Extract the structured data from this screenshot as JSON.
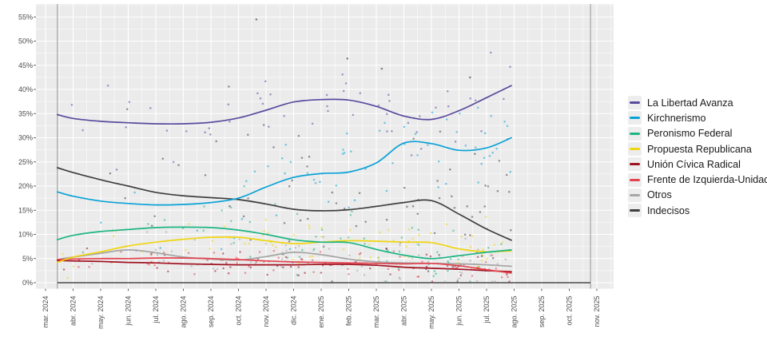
{
  "chart_data": {
    "type": "scatter",
    "subtype": "poll-scatter-with-smoothed-trend-lines",
    "title": "",
    "xlabel": "",
    "ylabel": "",
    "grid": true,
    "legend_position": "right",
    "y_axis": {
      "min": 0,
      "max": 57.5,
      "major_step": 5,
      "unit": "%"
    },
    "y_tick_labels": [
      "0%",
      "5%",
      "10%",
      "15%",
      "20%",
      "25%",
      "30%",
      "35%",
      "40%",
      "45%",
      "50%",
      "55%"
    ],
    "x_tick_labels": [
      "mar. 2024",
      "abr. 2024",
      "may. 2024",
      "jun. 2024",
      "jul. 2024",
      "ago. 2024",
      "sep. 2024",
      "oct. 2024",
      "nov. 2024",
      "dic. 2024",
      "ene. 2025",
      "feb. 2025",
      "mar. 2025",
      "abr. 2025",
      "may. 2025",
      "jun. 2025",
      "jul. 2025",
      "ago. 2025",
      "sep. 2025",
      "oct. 2025",
      "nov. 2025"
    ],
    "sample_months": [
      0.43,
      1,
      2,
      3,
      4,
      5,
      6,
      7,
      8,
      9,
      10,
      11,
      12,
      13,
      14,
      15,
      16,
      16.9
    ],
    "series": [
      {
        "name": "La Libertad Avanza",
        "color": "#5a4a9f",
        "scatter_sd": 4.3,
        "scatter_n": 52,
        "values": [
          34.8,
          34.0,
          33.4,
          33.1,
          32.9,
          32.9,
          33.2,
          34.1,
          35.7,
          37.4,
          37.9,
          37.8,
          36.5,
          34.5,
          33.8,
          35.6,
          38.3,
          40.8
        ]
      },
      {
        "name": "Kirchnerismo",
        "color": "#0aa2d6",
        "scatter_sd": 4.6,
        "scatter_n": 62,
        "values": [
          18.8,
          17.9,
          16.9,
          16.4,
          16.1,
          16.2,
          16.6,
          17.5,
          19.8,
          21.8,
          22.6,
          22.9,
          24.8,
          28.9,
          28.8,
          27.4,
          27.9,
          30.0
        ]
      },
      {
        "name": "Peronismo Federal",
        "color": "#1db584",
        "scatter_sd": 3.4,
        "scatter_n": 62,
        "values": [
          8.9,
          9.8,
          10.6,
          11.0,
          11.4,
          11.5,
          11.4,
          10.9,
          10.0,
          8.9,
          8.4,
          8.3,
          6.9,
          5.7,
          5.0,
          5.6,
          6.3,
          6.8
        ]
      },
      {
        "name": "Propuesta Republicana",
        "color": "#f0d510",
        "scatter_sd": 2.9,
        "scatter_n": 68,
        "values": [
          4.2,
          5.3,
          6.4,
          7.6,
          8.4,
          9.0,
          9.4,
          9.4,
          8.7,
          8.1,
          8.4,
          8.7,
          8.6,
          8.4,
          8.3,
          7.0,
          6.4,
          6.6
        ]
      },
      {
        "name": "Unión Cívica Radical",
        "color": "#a01221",
        "scatter_sd": 1.4,
        "scatter_n": 55,
        "values": [
          4.6,
          4.5,
          4.4,
          4.2,
          4.1,
          3.9,
          3.8,
          3.7,
          3.7,
          3.7,
          3.8,
          3.8,
          3.6,
          3.2,
          3.0,
          2.8,
          2.5,
          2.3
        ]
      },
      {
        "name": "Frente de Izquierda-Unidad",
        "color": "#e4434f",
        "scatter_sd": 1.5,
        "scatter_n": 62,
        "values": [
          4.8,
          4.9,
          5.0,
          5.0,
          5.1,
          5.1,
          5.0,
          4.8,
          4.5,
          4.3,
          4.2,
          4.1,
          4.0,
          3.9,
          4.0,
          3.5,
          2.7,
          2.0
        ]
      },
      {
        "name": "Otros",
        "color": "#a6a6a6",
        "scatter_sd": 2.4,
        "scatter_n": 68,
        "values": [
          4.8,
          5.3,
          6.1,
          6.8,
          6.2,
          5.3,
          4.9,
          4.7,
          5.4,
          6.3,
          5.8,
          4.9,
          4.3,
          4.1,
          4.0,
          3.9,
          3.7,
          3.4
        ]
      },
      {
        "name": "Indecisos",
        "color": "#3f3f3f",
        "scatter_sd": 8.8,
        "scatter_n": 78,
        "values": [
          23.8,
          22.8,
          21.3,
          20.0,
          18.7,
          18.0,
          17.6,
          17.2,
          16.3,
          15.2,
          14.9,
          15.1,
          15.8,
          16.6,
          17.0,
          14.2,
          11.1,
          8.8
        ]
      }
    ],
    "line_draw_order": [
      6,
      4,
      5,
      3,
      2,
      7,
      0,
      1
    ],
    "reference_lines": {
      "vertical_months": [
        0.43,
        19.77
      ],
      "zero_line": true
    },
    "outlier_points": [
      {
        "series_index": 7,
        "month": 7.65,
        "value": 54.5
      },
      {
        "series_index": 7,
        "month": 10.95,
        "value": 46.4
      },
      {
        "series_index": 7,
        "month": 12.2,
        "value": 44.3
      },
      {
        "series_index": 7,
        "month": 15.4,
        "value": 42.5
      }
    ],
    "scatter": {
      "seed": 42,
      "x_min_month": 0.43,
      "x_max_month": 16.9,
      "right_bias_exponent": 0.62,
      "point_opacity": 0.55
    },
    "colors": {
      "panel_bg": "#ebebeb",
      "grid": "#ffffff",
      "axis_text": "#4d4d4d",
      "tick_mark": "#333333",
      "ref_line": "#8c8c8c",
      "zero_line": "#4a4a4a",
      "legend_text": "#1a1a1a",
      "legend_key_bg": "#ededed"
    }
  }
}
